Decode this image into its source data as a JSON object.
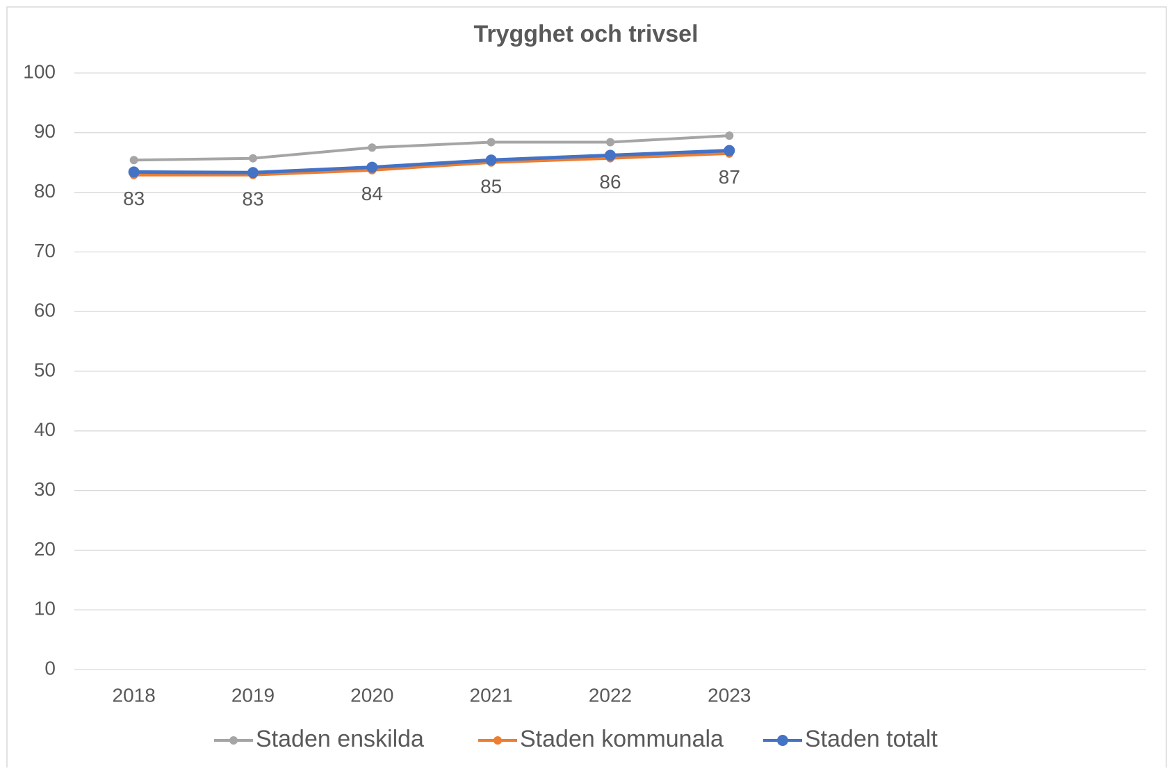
{
  "chart_data": {
    "type": "line",
    "title": "Trygghet och trivsel",
    "categories": [
      "2018",
      "2019",
      "2020",
      "2021",
      "2022",
      "2023",
      null,
      null,
      null
    ],
    "series": [
      {
        "name": "Staden enskilda",
        "color": "#a5a5a5",
        "values": [
          85.4,
          85.7,
          87.5,
          88.4,
          88.4,
          89.5,
          null,
          null,
          null
        ]
      },
      {
        "name": "Staden kommunala",
        "color": "#ed7d31",
        "values": [
          82.9,
          82.9,
          83.7,
          85.0,
          85.7,
          86.5,
          null,
          null,
          null
        ]
      },
      {
        "name": "Staden totalt",
        "color": "#4472c4",
        "values": [
          83.4,
          83.3,
          84.2,
          85.4,
          86.2,
          87.0,
          null,
          null,
          null
        ],
        "value_labels": [
          "83",
          "83",
          "84",
          "85",
          "86",
          "87",
          null,
          null,
          null
        ]
      }
    ],
    "ylim": [
      0,
      100
    ],
    "yticks": [
      0,
      10,
      20,
      30,
      40,
      50,
      60,
      70,
      80,
      90,
      100
    ],
    "grid": true,
    "legend": "bottom"
  }
}
